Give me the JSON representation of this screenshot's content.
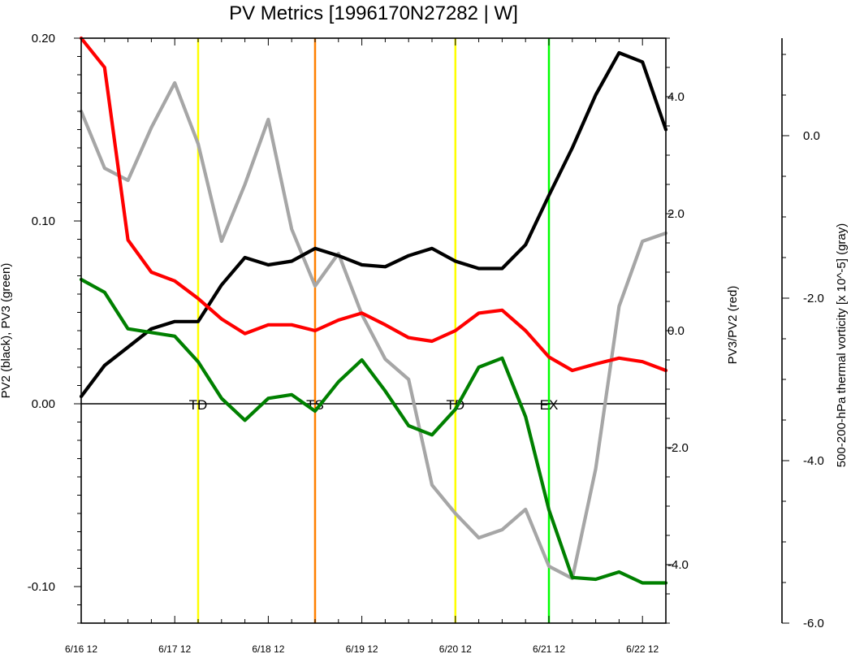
{
  "chart_data": {
    "type": "line",
    "title": "PV Metrics [1996170N27282 | W]",
    "ylabel_left": "PV2 (black), PV3 (green)",
    "ylabel_right1": "PV3/PV2 (red)",
    "ylabel_right2": "500-200-hPa thermal vorticity [x 10^-5] (gray)",
    "x_tick_labels": [
      "6/16 12",
      "6/17 12",
      "6/18 12",
      "6/19 12",
      "6/20 12",
      "6/21 12",
      "6/22 12"
    ],
    "x_ticks": [
      0,
      24,
      48,
      72,
      96,
      120,
      144
    ],
    "xlim": [
      0,
      150
    ],
    "left_axis": {
      "ylim": [
        -0.12,
        0.2
      ],
      "ticks": [
        0.2,
        0.1,
        0.0,
        -0.1
      ],
      "tick_labels": [
        "0.20",
        "0.10",
        "0.00",
        "-0.10"
      ]
    },
    "right_axis1": {
      "ylim": [
        -5.0,
        5.0
      ],
      "ticks": [
        4.0,
        2.0,
        0.0,
        -2.0,
        -4.0
      ],
      "tick_labels": [
        "4.0",
        "2.0",
        "0.0",
        "-2.0",
        "-4.0"
      ]
    },
    "right_axis2": {
      "ylim": [
        -6.0,
        1.2
      ],
      "ticks": [
        0.0,
        -2.0,
        -4.0,
        -6.0
      ],
      "tick_labels": [
        "0.0",
        "-2.0",
        "-4.0",
        "-6.0"
      ]
    },
    "series": [
      {
        "name": "PV2",
        "color": "#000000",
        "axis": "left",
        "x": [
          0,
          6,
          12,
          18,
          24,
          30,
          36,
          42,
          48,
          54,
          60,
          66,
          72,
          78,
          84,
          90,
          96,
          102,
          108,
          114,
          120,
          126,
          132,
          138,
          144,
          150
        ],
        "y": [
          0.004,
          0.021,
          0.031,
          0.041,
          0.045,
          0.045,
          0.065,
          0.08,
          0.076,
          0.078,
          0.085,
          0.081,
          0.076,
          0.075,
          0.081,
          0.085,
          0.078,
          0.074,
          0.074,
          0.087,
          0.114,
          0.14,
          0.169,
          0.192,
          0.187,
          0.15
        ]
      },
      {
        "name": "PV3",
        "color": "#008000",
        "axis": "left",
        "x": [
          0,
          6,
          12,
          18,
          24,
          30,
          36,
          42,
          48,
          54,
          60,
          66,
          72,
          78,
          84,
          90,
          96,
          102,
          108,
          114,
          120,
          126,
          132,
          138,
          144,
          150
        ],
        "y": [
          0.068,
          0.061,
          0.041,
          0.039,
          0.037,
          0.023,
          0.003,
          -0.009,
          0.003,
          0.005,
          -0.004,
          0.012,
          0.024,
          0.007,
          -0.012,
          -0.017,
          -0.003,
          0.02,
          0.025,
          -0.007,
          -0.058,
          -0.095,
          -0.096,
          -0.092,
          -0.098,
          -0.098
        ]
      },
      {
        "name": "PV3/PV2",
        "color": "#ff0000",
        "axis": "right1",
        "x": [
          0,
          6,
          12,
          18,
          24,
          30,
          36,
          42,
          48,
          54,
          60,
          66,
          72,
          78,
          84,
          90,
          96,
          102,
          108,
          114,
          120,
          126,
          132,
          138,
          144,
          150
        ],
        "y": [
          5.0,
          4.5,
          1.55,
          1.0,
          0.85,
          0.55,
          0.2,
          -0.05,
          0.1,
          0.1,
          0.0,
          0.18,
          0.3,
          0.1,
          -0.12,
          -0.18,
          0.0,
          0.3,
          0.35,
          0.0,
          -0.45,
          -0.68,
          -0.57,
          -0.47,
          -0.53,
          -0.68
        ]
      },
      {
        "name": "thermal vorticity",
        "color": "#a6a6a6",
        "axis": "right2",
        "x": [
          0,
          6,
          12,
          18,
          24,
          30,
          36,
          42,
          48,
          54,
          60,
          66,
          72,
          78,
          84,
          90,
          96,
          102,
          108,
          114,
          120,
          126,
          132,
          138,
          144,
          150
        ],
        "y": [
          0.3,
          -0.4,
          -0.55,
          0.1,
          0.65,
          -0.1,
          -1.3,
          -0.6,
          0.2,
          -1.15,
          -1.85,
          -1.45,
          -2.2,
          -2.75,
          -3.0,
          -4.3,
          -4.65,
          -4.95,
          -4.85,
          -4.6,
          -5.3,
          -5.45,
          -4.1,
          -2.1,
          -1.3,
          -1.2
        ]
      }
    ],
    "vertical_lines": [
      {
        "x": 30,
        "color": "#ffff00",
        "label": "TD"
      },
      {
        "x": 60,
        "color": "#ff8000",
        "label": "TS"
      },
      {
        "x": 96,
        "color": "#ffff00",
        "label": "TD"
      },
      {
        "x": 120,
        "color": "#00ff00",
        "label": "EX"
      }
    ]
  }
}
